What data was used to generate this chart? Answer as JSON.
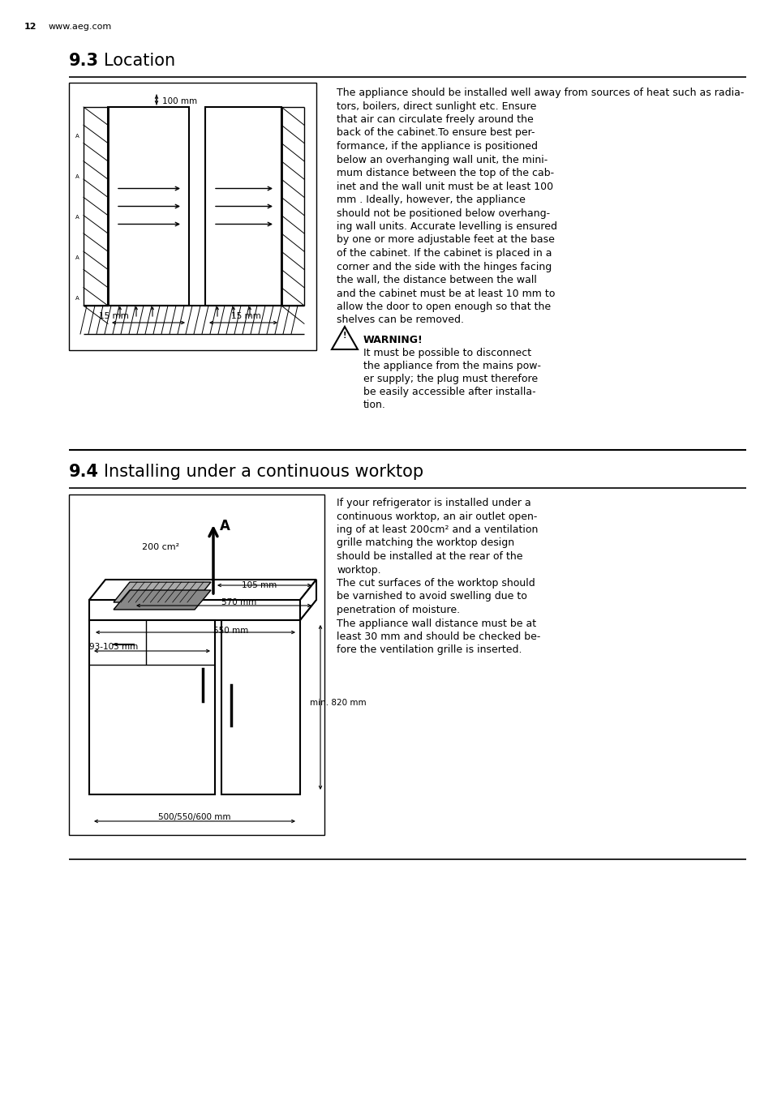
{
  "page_number": "12",
  "website": "www.aeg.com",
  "section1_number": "9.3",
  "section1_title": "Location",
  "section1_text": "The appliance should be installed well away from sources of heat such as radia-\ntors, boilers, direct sunlight etc. Ensure\nthat air can circulate freely around the\nback of the cabinet.To ensure best per-\nformance, if the appliance is positioned\nbelow an overhanging wall unit, the mini-\nmum distance between the top of the cab-\ninet and the wall unit must be at least 100\nmm . Ideally, however, the appliance\nshould not be positioned below overhang-\ning wall units. Accurate levelling is ensured\nby one or more adjustable feet at the base\nof the cabinet. If the cabinet is placed in a\ncorner and the side with the hinges facing\nthe wall, the distance between the wall\nand the cabinet must be at least 10 mm to\nallow the door to open enough so that the\nshelves can be removed.",
  "warning_title": "WARNING!",
  "warning_text": "It must be possible to disconnect\nthe appliance from the mains pow-\ner supply; the plug must therefore\nbe easily accessible after installa-\ntion.",
  "section2_number": "9.4",
  "section2_title": "Installing under a continuous worktop",
  "section2_text": "If your refrigerator is installed under a\ncontinuous worktop, an air outlet open-\ning of at least 200cm² and a ventilation\ngrille matching the worktop design\nshould be installed at the rear of the\nworktop.\nThe cut surfaces of the worktop should\nbe varnished to avoid swelling due to\npenetration of moisture.\nThe appliance wall distance must be at\nleast 30 mm and should be checked be-\nfore the ventilation grille is inserted.",
  "bg_color": "#ffffff",
  "text_color": "#000000",
  "line_color": "#000000"
}
